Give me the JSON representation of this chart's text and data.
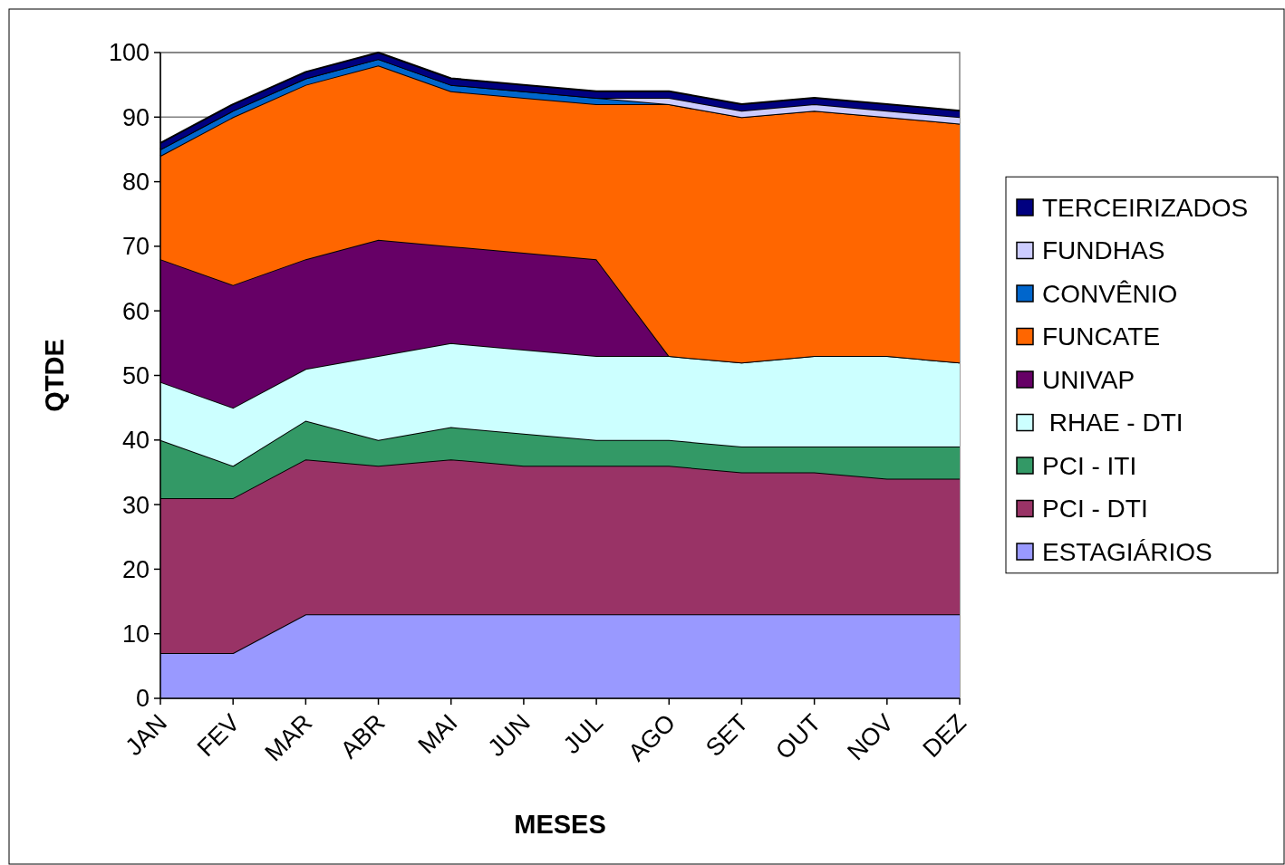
{
  "chart_data": {
    "type": "area",
    "stacked": true,
    "xlabel": "MESES",
    "ylabel": "QTDE",
    "categories": [
      "JAN",
      "FEV",
      "MAR",
      "ABR",
      "MAI",
      "JUN",
      "JUL",
      "AGO",
      "SET",
      "OUT",
      "NOV",
      "DEZ"
    ],
    "series": [
      {
        "name": "ESTAGIÁRIOS",
        "color": "#9999ff",
        "values": [
          7,
          7,
          13,
          13,
          13,
          13,
          13,
          13,
          13,
          13,
          13,
          13
        ]
      },
      {
        "name": "PCI - DTI",
        "color": "#993366",
        "values": [
          24,
          24,
          24,
          23,
          24,
          23,
          23,
          23,
          22,
          22,
          21,
          21
        ]
      },
      {
        "name": "PCI - ITI",
        "color": "#339966",
        "values": [
          9,
          5,
          6,
          4,
          5,
          5,
          4,
          4,
          4,
          4,
          5,
          5
        ]
      },
      {
        "name": " RHAE - DTI",
        "color": "#ccffff",
        "values": [
          9,
          9,
          8,
          13,
          13,
          13,
          13,
          13,
          13,
          14,
          14,
          13
        ]
      },
      {
        "name": "UNIVAP",
        "color": "#660066",
        "values": [
          19,
          19,
          17,
          18,
          15,
          15,
          15,
          0,
          0,
          0,
          0,
          0
        ]
      },
      {
        "name": "FUNCATE",
        "color": "#ff6600",
        "values": [
          16,
          26,
          27,
          27,
          24,
          24,
          24,
          39,
          38,
          38,
          37,
          37
        ]
      },
      {
        "name": "CONVÊNIO",
        "color": "#0066cc",
        "values": [
          1,
          1,
          1,
          1,
          1,
          1,
          1,
          0,
          0,
          0,
          0,
          0
        ]
      },
      {
        "name": "FUNDHAS",
        "color": "#ccccff",
        "values": [
          0,
          0,
          0,
          0,
          0,
          0,
          0,
          1,
          1,
          1,
          1,
          1
        ]
      },
      {
        "name": "TERCEIRIZADOS",
        "color": "#000080",
        "values": [
          1,
          1,
          1,
          1,
          1,
          1,
          1,
          1,
          1,
          1,
          1,
          1
        ]
      }
    ],
    "ylim": [
      0,
      100
    ],
    "yticks": [
      0,
      10,
      20,
      30,
      40,
      50,
      60,
      70,
      80,
      90,
      100
    ],
    "grid": "y",
    "legend": "right"
  }
}
